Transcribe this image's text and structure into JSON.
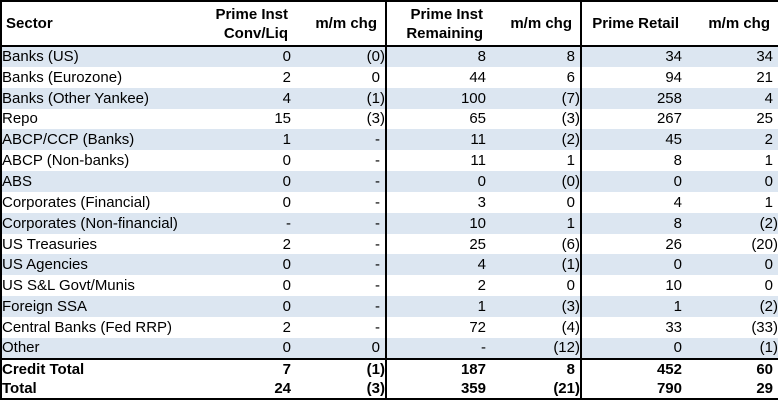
{
  "chart_data": {
    "type": "table",
    "title": "",
    "columns": [
      "Sector",
      "Prime Inst Conv/Liq",
      "m/m chg",
      "Prime Inst Remaining",
      "m/m chg",
      "Prime Retail",
      "m/m chg"
    ],
    "header": [
      {
        "line1": "",
        "line2": "Sector"
      },
      {
        "line1": "Prime Inst",
        "line2": "Conv/Liq"
      },
      {
        "line1": "",
        "line2": "m/m chg"
      },
      {
        "line1": "Prime Inst",
        "line2": "Remaining"
      },
      {
        "line1": "",
        "line2": "m/m chg"
      },
      {
        "line1": "",
        "line2": "Prime Retail"
      },
      {
        "line1": "",
        "line2": "m/m chg"
      }
    ],
    "rows": [
      {
        "sector": "Banks (US)",
        "values": [
          "0",
          "(0)",
          "8",
          "8",
          "34",
          "34"
        ]
      },
      {
        "sector": "Banks (Eurozone)",
        "values": [
          "2",
          "0",
          "44",
          "6",
          "94",
          "21"
        ]
      },
      {
        "sector": "Banks (Other Yankee)",
        "values": [
          "4",
          "(1)",
          "100",
          "(7)",
          "258",
          "4"
        ]
      },
      {
        "sector": "Repo",
        "values": [
          "15",
          "(3)",
          "65",
          "(3)",
          "267",
          "25"
        ]
      },
      {
        "sector": "ABCP/CCP (Banks)",
        "values": [
          "1",
          "-",
          "11",
          "(2)",
          "45",
          "2"
        ]
      },
      {
        "sector": "ABCP (Non-banks)",
        "values": [
          "0",
          "-",
          "11",
          "1",
          "8",
          "1"
        ]
      },
      {
        "sector": "ABS",
        "values": [
          "0",
          "-",
          "0",
          "(0)",
          "0",
          "0"
        ]
      },
      {
        "sector": "Corporates (Financial)",
        "values": [
          "0",
          "-",
          "3",
          "0",
          "4",
          "1"
        ]
      },
      {
        "sector": "Corporates (Non-financial)",
        "values": [
          "-",
          "-",
          "10",
          "1",
          "8",
          "(2)"
        ]
      },
      {
        "sector": "US Treasuries",
        "values": [
          "2",
          "-",
          "25",
          "(6)",
          "26",
          "(20)"
        ]
      },
      {
        "sector": "US Agencies",
        "values": [
          "0",
          "-",
          "4",
          "(1)",
          "0",
          "0"
        ]
      },
      {
        "sector": "US S&L Govt/Munis",
        "values": [
          "0",
          "-",
          "2",
          "0",
          "10",
          "0"
        ]
      },
      {
        "sector": "Foreign SSA",
        "values": [
          "0",
          "-",
          "1",
          "(3)",
          "1",
          "(2)"
        ]
      },
      {
        "sector": "Central Banks (Fed RRP)",
        "values": [
          "2",
          "-",
          "72",
          "(4)",
          "33",
          "(33)"
        ]
      },
      {
        "sector": "Other",
        "values": [
          "0",
          "0",
          "-",
          "(12)",
          "0",
          "(1)"
        ]
      }
    ],
    "total_rows": [
      {
        "sector": "Credit Total",
        "values": [
          "7",
          "(1)",
          "187",
          "8",
          "452",
          "60"
        ]
      },
      {
        "sector": "Total",
        "values": [
          "24",
          "(3)",
          "359",
          "(21)",
          "790",
          "29"
        ]
      }
    ],
    "layout_hints": {
      "row_alt_fill": "#dce6f1",
      "border_color": "#000000",
      "text_color": "#000000",
      "background": "#ffffff",
      "thick_dividers_before_columns": [
        "Prime Inst Remaining",
        "Prime Retail"
      ]
    }
  }
}
